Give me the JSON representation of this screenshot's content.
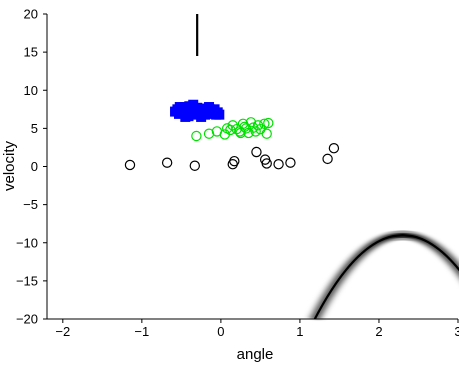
{
  "chart_data": {
    "type": "scatter",
    "xlabel": "angle",
    "ylabel": "velocity",
    "xlim": [
      -2.2,
      3
    ],
    "ylim": [
      -20,
      20
    ],
    "xticks": [
      -2,
      -1,
      0,
      1,
      2,
      3
    ],
    "yticks": [
      20,
      15,
      10,
      5,
      0,
      -5,
      -10,
      -15,
      -20
    ],
    "xtick_labels": [
      "−2",
      "−1",
      "0",
      "1",
      "2",
      "3"
    ],
    "ytick_labels": [
      "20",
      "15",
      "10",
      "5",
      "0",
      "−5",
      "−10",
      "−15",
      "−20"
    ],
    "grid": false,
    "series": [
      {
        "marker": "circle-open",
        "color": "#000000",
        "points": [
          [
            -1.15,
            0.2
          ],
          [
            -0.68,
            0.5
          ],
          [
            -0.33,
            0.1
          ],
          [
            0.15,
            0.3
          ],
          [
            0.17,
            0.7
          ],
          [
            0.45,
            1.9
          ],
          [
            0.56,
            0.9
          ],
          [
            0.58,
            0.4
          ],
          [
            0.73,
            0.3
          ],
          [
            0.88,
            0.5
          ],
          [
            1.35,
            1.0
          ],
          [
            1.43,
            2.4
          ]
        ]
      },
      {
        "marker": "circle-open",
        "color": "#00e000",
        "points": [
          [
            -0.31,
            4.0
          ],
          [
            -0.15,
            4.3
          ],
          [
            -0.05,
            4.6
          ],
          [
            0.05,
            4.2
          ],
          [
            0.12,
            4.8
          ],
          [
            0.15,
            5.4
          ],
          [
            0.2,
            4.9
          ],
          [
            0.24,
            4.6
          ],
          [
            0.28,
            5.6
          ],
          [
            0.32,
            5.0
          ],
          [
            0.35,
            4.4
          ],
          [
            0.38,
            5.8
          ],
          [
            0.41,
            5.1
          ],
          [
            0.44,
            4.6
          ],
          [
            0.47,
            5.4
          ],
          [
            0.5,
            4.9
          ],
          [
            0.55,
            5.6
          ],
          [
            0.58,
            4.3
          ],
          [
            0.6,
            5.7
          ],
          [
            0.25,
            4.4
          ],
          [
            0.08,
            5.0
          ],
          [
            0.3,
            5.2
          ]
        ]
      },
      {
        "marker": "square-filled",
        "color": "#0000ff",
        "points": [
          [
            -0.58,
            7.2
          ],
          [
            -0.55,
            7.5
          ],
          [
            -0.53,
            6.9
          ],
          [
            -0.5,
            7.6
          ],
          [
            -0.48,
            7.1
          ],
          [
            -0.46,
            7.8
          ],
          [
            -0.44,
            6.7
          ],
          [
            -0.42,
            7.3
          ],
          [
            -0.4,
            7.9
          ],
          [
            -0.38,
            7.0
          ],
          [
            -0.36,
            7.5
          ],
          [
            -0.34,
            6.8
          ],
          [
            -0.32,
            7.2
          ],
          [
            -0.3,
            7.7
          ],
          [
            -0.28,
            6.9
          ],
          [
            -0.26,
            7.4
          ],
          [
            -0.24,
            7.0
          ],
          [
            -0.22,
            7.6
          ],
          [
            -0.2,
            6.8
          ],
          [
            -0.18,
            7.3
          ],
          [
            -0.16,
            7.0
          ],
          [
            -0.14,
            7.5
          ],
          [
            -0.12,
            6.9
          ],
          [
            -0.1,
            7.2
          ],
          [
            -0.08,
            7.5
          ],
          [
            -0.06,
            6.8
          ],
          [
            -0.04,
            7.1
          ],
          [
            -0.02,
            6.8
          ],
          [
            -0.45,
            6.5
          ],
          [
            -0.35,
            8.1
          ],
          [
            -0.25,
            6.5
          ],
          [
            -0.15,
            7.8
          ],
          [
            -0.52,
            7.8
          ],
          [
            -0.41,
            6.6
          ]
        ]
      }
    ],
    "density_bands": [
      {
        "color": "#000000",
        "vertex": [
          -0.3,
          30.5
        ],
        "a": 7.6,
        "y_range": [
          14.5,
          20
        ]
      },
      {
        "color": "#000000",
        "vertex": [
          2.3,
          -9
        ],
        "a": -8.9,
        "y_range": [
          -20,
          -9
        ]
      }
    ]
  }
}
